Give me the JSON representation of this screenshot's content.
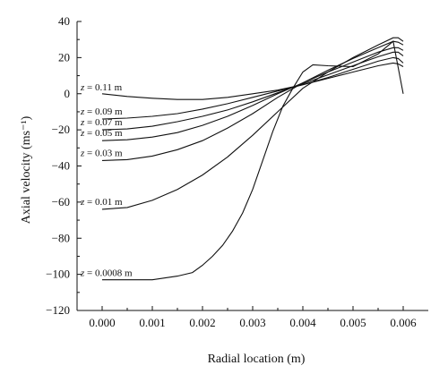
{
  "chart_data": {
    "type": "line",
    "title": "",
    "xlabel": "Radial location (m)",
    "ylabel": "Axial velocity (ms⁻¹)",
    "xlim": [
      -0.0005,
      0.0065
    ],
    "ylim": [
      -120,
      40
    ],
    "xticks": [
      0.0,
      0.001,
      0.002,
      0.003,
      0.004,
      0.005,
      0.006
    ],
    "xtick_labels": [
      "0.000",
      "0.001",
      "0.002",
      "0.003",
      "0.004",
      "0.005",
      "0.006"
    ],
    "yticks": [
      -120,
      -100,
      -80,
      -60,
      -40,
      -20,
      0,
      20,
      40
    ],
    "ytick_labels": [
      "−120",
      "−100",
      "−80",
      "−60",
      "−40",
      "−20",
      "0",
      "20",
      "40"
    ],
    "grid": false,
    "legend": "none",
    "series": [
      {
        "label": "z = 0.11 m",
        "x": [
          0,
          0.0005,
          0.001,
          0.0015,
          0.002,
          0.0025,
          0.003,
          0.0035,
          0.004,
          0.0045,
          0.005,
          0.0055,
          0.0058,
          0.0059,
          0.006
        ],
        "y": [
          0,
          -1.5,
          -2.5,
          -3.2,
          -3.2,
          -2.0,
          0.0,
          2.0,
          5.0,
          8.5,
          12.0,
          15.5,
          17.0,
          16.5,
          15.0
        ]
      },
      {
        "label": "z = 0.09 m",
        "x": [
          0,
          0.0005,
          0.001,
          0.0015,
          0.002,
          0.0025,
          0.003,
          0.0035,
          0.004,
          0.0045,
          0.005,
          0.0055,
          0.0058,
          0.0059,
          0.006
        ],
        "y": [
          -14,
          -13.5,
          -12.5,
          -11.0,
          -8.5,
          -5.5,
          -2.0,
          1.5,
          5.0,
          9.0,
          13.5,
          18.0,
          20.0,
          19.5,
          17.0
        ]
      },
      {
        "label": "z = 0.07 m",
        "x": [
          0,
          0.0005,
          0.001,
          0.0015,
          0.002,
          0.0025,
          0.003,
          0.0035,
          0.004,
          0.0045,
          0.005,
          0.0055,
          0.0058,
          0.0059,
          0.006
        ],
        "y": [
          -20,
          -19.5,
          -18.0,
          -15.5,
          -12.5,
          -9.0,
          -4.5,
          0.5,
          5.5,
          10.5,
          15.5,
          20.5,
          23.0,
          23.0,
          21.0
        ]
      },
      {
        "label": "z = 0.05 m",
        "x": [
          0,
          0.0005,
          0.001,
          0.0015,
          0.002,
          0.0025,
          0.003,
          0.0035,
          0.004,
          0.0045,
          0.005,
          0.0055,
          0.0058,
          0.0059,
          0.006
        ],
        "y": [
          -26,
          -25.5,
          -24.0,
          -21.5,
          -17.5,
          -12.5,
          -6.5,
          0.0,
          6.0,
          12.0,
          17.5,
          23.0,
          25.5,
          25.5,
          24.0
        ]
      },
      {
        "label": "z = 0.03 m",
        "x": [
          0,
          0.0005,
          0.001,
          0.0015,
          0.002,
          0.0025,
          0.003,
          0.0035,
          0.004,
          0.0045,
          0.005,
          0.0055,
          0.0058,
          0.0059,
          0.006
        ],
        "y": [
          -37,
          -36.5,
          -34.5,
          -31.0,
          -26.0,
          -19.0,
          -11.0,
          -2.0,
          6.0,
          13.0,
          19.5,
          25.5,
          29.0,
          28.5,
          27.0
        ]
      },
      {
        "label": "z = 0.01 m",
        "x": [
          0,
          0.0005,
          0.001,
          0.0015,
          0.002,
          0.0025,
          0.003,
          0.0035,
          0.004,
          0.0045,
          0.005,
          0.0055,
          0.0058,
          0.0059,
          0.006
        ],
        "y": [
          -64,
          -63,
          -59,
          -53,
          -45,
          -35,
          -23,
          -10,
          3,
          12,
          20,
          27,
          31,
          31,
          29
        ]
      },
      {
        "label": "z = 0.0008 m",
        "x": [
          0,
          0.0005,
          0.001,
          0.0015,
          0.0018,
          0.002,
          0.0022,
          0.0024,
          0.0026,
          0.0028,
          0.003,
          0.0032,
          0.0034,
          0.0036,
          0.0038,
          0.004,
          0.0042,
          0.0045,
          0.005,
          0.0055,
          0.0058,
          0.006
        ],
        "y": [
          -103,
          -103,
          -103,
          -101,
          -99,
          -95,
          -90,
          -84,
          -76,
          -66,
          -53,
          -37,
          -21,
          -7,
          3,
          12,
          16,
          15.5,
          15,
          22,
          29,
          0
        ]
      }
    ],
    "label_text": {
      "z011": {
        "prefix": "z",
        "rest": " = 0.11 m"
      },
      "z009": {
        "prefix": "z",
        "rest": " = 0.09 m"
      },
      "z007": {
        "prefix": "z",
        "rest": " = 0.07 m"
      },
      "z005": {
        "prefix": "z",
        "rest": " = 0.05 m"
      },
      "z003": {
        "prefix": "z",
        "rest": " = 0.03 m"
      },
      "z001": {
        "prefix": "z",
        "rest": " = 0.01 m"
      },
      "z0008": {
        "prefix": "z",
        "rest": " = 0.0008 m"
      }
    }
  }
}
